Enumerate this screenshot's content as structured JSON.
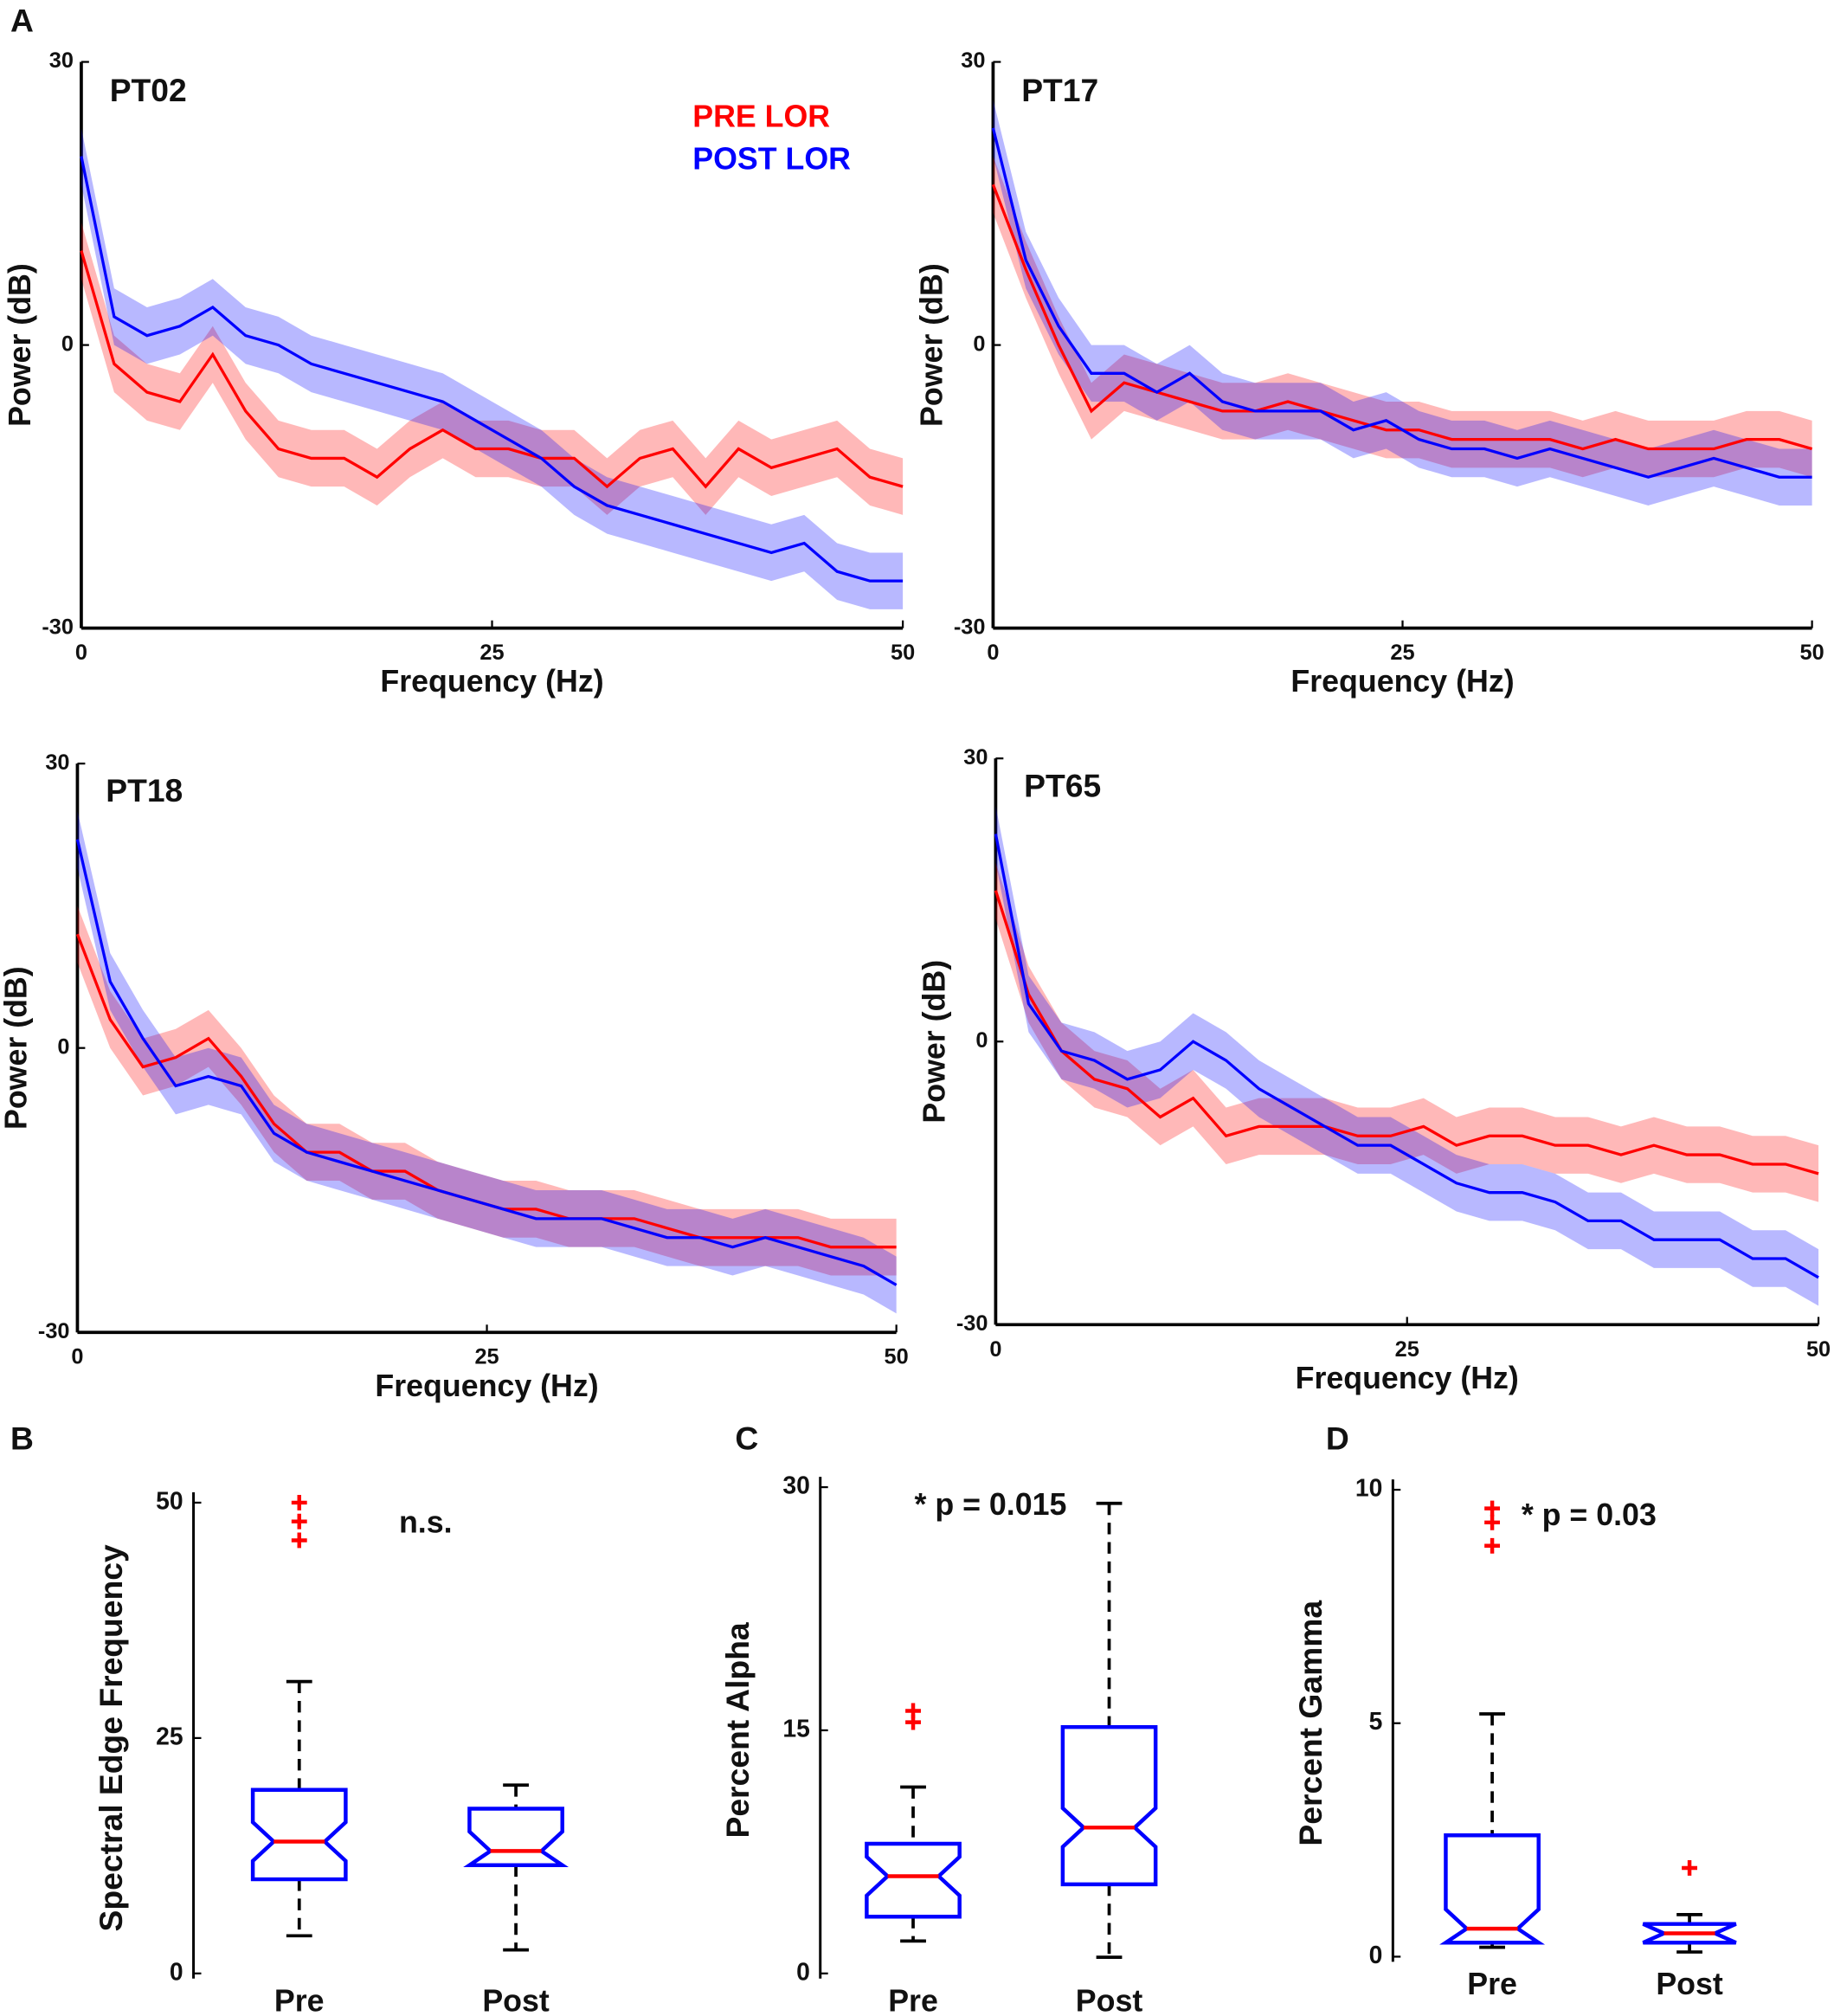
{
  "chart_data": [
    {
      "type": "line",
      "panel": "A",
      "title": "PT02",
      "xlabel": "Frequency (Hz)",
      "ylabel": "Power (dB)",
      "legend": true,
      "legend_position": "upper right",
      "x": [
        0,
        2,
        4,
        6,
        8,
        10,
        12,
        14,
        16,
        18,
        20,
        22,
        24,
        26,
        28,
        30,
        32,
        34,
        36,
        38,
        40,
        42,
        44,
        46,
        48,
        50
      ],
      "series": [
        {
          "name": "PRE LOR",
          "color": "#ff0000",
          "band": 3,
          "values": [
            10,
            -2,
            -5,
            -6,
            -1,
            -7,
            -11,
            -12,
            -12,
            -14,
            -11,
            -9,
            -11,
            -11,
            -12,
            -12,
            -15,
            -12,
            -11,
            -15,
            -11,
            -13,
            -12,
            -11,
            -14,
            -15
          ]
        },
        {
          "name": "POST LOR",
          "color": "#0000ff",
          "band": 3,
          "values": [
            20,
            3,
            1,
            2,
            4,
            1,
            0,
            -2,
            -3,
            -4,
            -5,
            -6,
            -8,
            -10,
            -12,
            -15,
            -17,
            -18,
            -19,
            -20,
            -21,
            -22,
            -21,
            -24,
            -25,
            -25
          ]
        }
      ],
      "xlim": [
        0,
        50
      ],
      "xticks": [
        0,
        25,
        50
      ],
      "ylim": [
        -30,
        30
      ],
      "yticks": [
        -30,
        0,
        30
      ]
    },
    {
      "type": "line",
      "title": "PT17",
      "xlabel": "Frequency (Hz)",
      "ylabel": "Power (dB)",
      "x": [
        0,
        2,
        4,
        6,
        8,
        10,
        12,
        14,
        16,
        18,
        20,
        22,
        24,
        26,
        28,
        30,
        32,
        34,
        36,
        38,
        40,
        42,
        44,
        46,
        48,
        50
      ],
      "series": [
        {
          "color": "#ff0000",
          "band": 3,
          "values": [
            17,
            8,
            0,
            -7,
            -4,
            -5,
            -6,
            -7,
            -7,
            -6,
            -7,
            -8,
            -9,
            -9,
            -10,
            -10,
            -10,
            -10,
            -11,
            -10,
            -11,
            -11,
            -11,
            -10,
            -10,
            -11
          ]
        },
        {
          "color": "#0000ff",
          "band": 3,
          "values": [
            23,
            9,
            2,
            -3,
            -3,
            -5,
            -3,
            -6,
            -7,
            -7,
            -7,
            -9,
            -8,
            -10,
            -11,
            -11,
            -12,
            -11,
            -12,
            -13,
            -14,
            -13,
            -12,
            -13,
            -14,
            -14
          ]
        }
      ],
      "xlim": [
        0,
        50
      ],
      "xticks": [
        0,
        25,
        50
      ],
      "ylim": [
        -30,
        30
      ],
      "yticks": [
        -30,
        0,
        30
      ]
    },
    {
      "type": "line",
      "title": "PT18",
      "xlabel": "Frequency (Hz)",
      "ylabel": "Power (dB)",
      "x": [
        0,
        2,
        4,
        6,
        8,
        10,
        12,
        14,
        16,
        18,
        20,
        22,
        24,
        26,
        28,
        30,
        32,
        34,
        36,
        38,
        40,
        42,
        44,
        46,
        48,
        50
      ],
      "series": [
        {
          "color": "#ff0000",
          "band": 3,
          "values": [
            12,
            3,
            -2,
            -1,
            1,
            -3,
            -8,
            -11,
            -11,
            -13,
            -13,
            -15,
            -16,
            -17,
            -17,
            -18,
            -18,
            -18,
            -19,
            -20,
            -20,
            -20,
            -20,
            -21,
            -21,
            -21
          ]
        },
        {
          "color": "#0000ff",
          "band": 3,
          "values": [
            22,
            7,
            1,
            -4,
            -3,
            -4,
            -9,
            -11,
            -12,
            -13,
            -14,
            -15,
            -16,
            -17,
            -18,
            -18,
            -18,
            -19,
            -20,
            -20,
            -21,
            -20,
            -21,
            -22,
            -23,
            -25
          ]
        }
      ],
      "xlim": [
        0,
        50
      ],
      "xticks": [
        0,
        25,
        50
      ],
      "ylim": [
        -30,
        30
      ],
      "yticks": [
        -30,
        0,
        30
      ]
    },
    {
      "type": "line",
      "title": "PT65",
      "xlabel": "Frequency (Hz)",
      "ylabel": "Power (dB)",
      "x": [
        0,
        2,
        4,
        6,
        8,
        10,
        12,
        14,
        16,
        18,
        20,
        22,
        24,
        26,
        28,
        30,
        32,
        34,
        36,
        38,
        40,
        42,
        44,
        46,
        48,
        50
      ],
      "series": [
        {
          "color": "#ff0000",
          "band": 3,
          "values": [
            16,
            5,
            -1,
            -4,
            -5,
            -8,
            -6,
            -10,
            -9,
            -9,
            -9,
            -10,
            -10,
            -9,
            -11,
            -10,
            -10,
            -11,
            -11,
            -12,
            -11,
            -12,
            -12,
            -13,
            -13,
            -14
          ]
        },
        {
          "color": "#0000ff",
          "band": 3,
          "values": [
            22,
            4,
            -1,
            -2,
            -4,
            -3,
            0,
            -2,
            -5,
            -7,
            -9,
            -11,
            -11,
            -13,
            -15,
            -16,
            -16,
            -17,
            -19,
            -19,
            -21,
            -21,
            -21,
            -23,
            -23,
            -25
          ]
        }
      ],
      "xlim": [
        0,
        50
      ],
      "xticks": [
        0,
        25,
        50
      ],
      "ylim": [
        -30,
        30
      ],
      "yticks": [
        -30,
        0,
        30
      ]
    },
    {
      "type": "box",
      "panel": "B",
      "ylabel": "Spectral Edge Frequency",
      "annotation": "n.s.",
      "categories": [
        "Pre",
        "Post"
      ],
      "box_color": "#0000ff",
      "median_color": "#ff0000",
      "outlier_color": "#ff0000",
      "boxes": [
        {
          "low": 4,
          "q1": 10,
          "median": 14,
          "q3": 19.5,
          "high": 31,
          "outliers": [
            46,
            48,
            50
          ]
        },
        {
          "low": 2.5,
          "q1": 11.5,
          "median": 13,
          "q3": 17.5,
          "high": 20,
          "outliers": []
        }
      ],
      "ylim": [
        0,
        50
      ],
      "yticks": [
        0,
        25,
        50
      ]
    },
    {
      "type": "box",
      "panel": "C",
      "ylabel": "Percent Alpha",
      "annotation": "* p = 0.015",
      "categories": [
        "Pre",
        "Post"
      ],
      "box_color": "#0000ff",
      "median_color": "#ff0000",
      "outlier_color": "#ff0000",
      "boxes": [
        {
          "low": 2,
          "q1": 3.5,
          "median": 6,
          "q3": 8,
          "high": 11.5,
          "outliers": [
            15.5,
            16.2
          ]
        },
        {
          "low": 1,
          "q1": 5.5,
          "median": 9,
          "q3": 15.2,
          "high": 29,
          "outliers": []
        }
      ],
      "ylim": [
        0,
        30
      ],
      "yticks": [
        0,
        15,
        30
      ]
    },
    {
      "type": "box",
      "panel": "D",
      "ylabel": "Percent Gamma",
      "annotation": "* p = 0.03",
      "categories": [
        "Pre",
        "Post"
      ],
      "box_color": "#0000ff",
      "median_color": "#ff0000",
      "outlier_color": "#ff0000",
      "boxes": [
        {
          "low": 0.2,
          "q1": 0.3,
          "median": 0.6,
          "q3": 2.6,
          "high": 5.2,
          "outliers": [
            8.8,
            9.3,
            9.6
          ]
        },
        {
          "low": 0.1,
          "q1": 0.3,
          "median": 0.5,
          "q3": 0.7,
          "high": 0.9,
          "outliers": [
            1.9
          ]
        }
      ],
      "ylim": [
        0,
        10
      ],
      "yticks": [
        0,
        5,
        10
      ]
    }
  ]
}
